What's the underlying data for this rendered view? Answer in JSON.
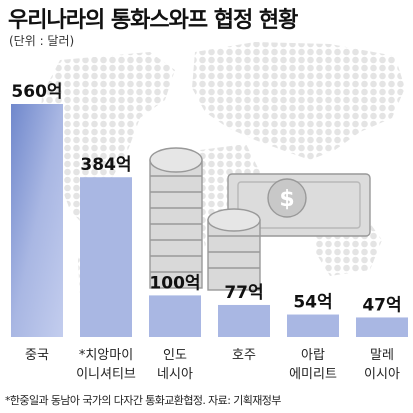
{
  "header": {
    "title": "우리나라의 통화스와프 협정 현황",
    "unit": "(단위 : 달러)"
  },
  "footnote": "*한중일과 동남아 국가의 다자간 통화교환협정. 자료: 기획재정부",
  "colors": {
    "bar": "#a9b7e3",
    "bar_gradient_dark": "#7088cc",
    "map_dots": "#e4e4e4"
  },
  "chart_data": {
    "type": "bar",
    "categories": [
      [
        "중국"
      ],
      [
        "*치앙마이",
        "이니셔티브"
      ],
      [
        "인도",
        "네시아"
      ],
      [
        "호주"
      ],
      [
        "아랍",
        "에미리트"
      ],
      [
        "말레",
        "이시아"
      ]
    ],
    "values": [
      560,
      384,
      100,
      77,
      54,
      47
    ],
    "value_labels": [
      "560억",
      "384억",
      "100억",
      "77억",
      "54억",
      "47억"
    ],
    "ylim": [
      0,
      560
    ],
    "grid": false,
    "legend": "none"
  }
}
